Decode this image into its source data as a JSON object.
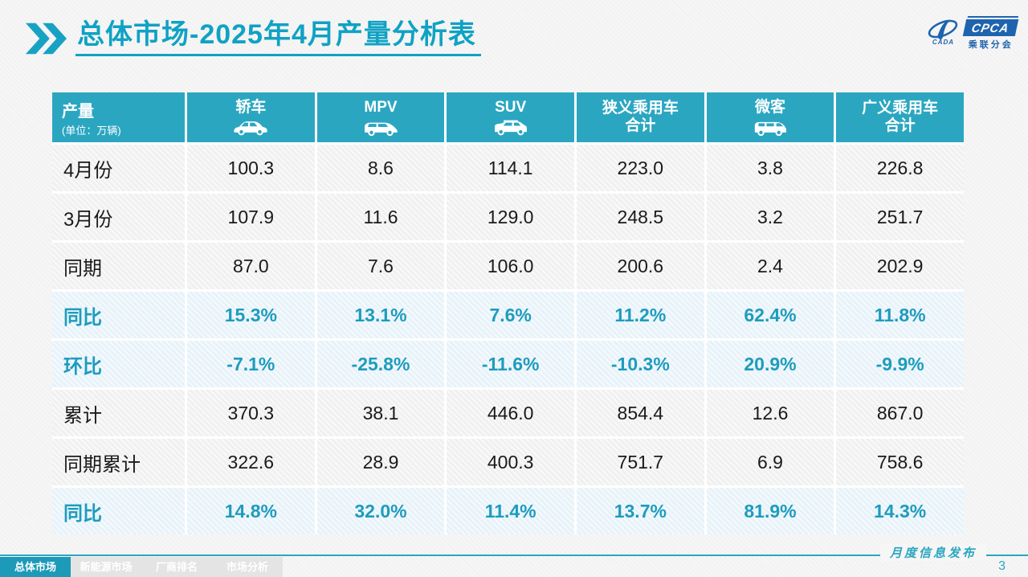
{
  "slide": {
    "title": "总体市场-2025年4月产量分析表",
    "logo": {
      "acronym": "CPCA",
      "org_name": "乘联分会",
      "swoosh_caption": "CADA"
    },
    "watermark_text": "CPCA 乘联分会",
    "footer": {
      "publication_label": "月度信息发布",
      "page_number": "3",
      "tabs": [
        {
          "label": "总体市场",
          "active": true
        },
        {
          "label": "新能源市场",
          "active": false
        },
        {
          "label": "厂商排名",
          "active": false
        },
        {
          "label": "市场分析",
          "active": false
        }
      ]
    }
  },
  "table": {
    "corner": {
      "title": "产量",
      "unit": "(单位：万辆)"
    },
    "columns": [
      {
        "label": "轿车",
        "icon": "sedan-icon"
      },
      {
        "label": "MPV",
        "icon": "mpv-icon"
      },
      {
        "label": "SUV",
        "icon": "suv-icon"
      },
      {
        "label": "狭义乘用车\n合计",
        "icon": null
      },
      {
        "label": "微客",
        "icon": "microvan-icon"
      },
      {
        "label": "广义乘用车\n合计",
        "icon": null
      }
    ],
    "rows": [
      {
        "label": "4月份",
        "highlight": false,
        "values": [
          "100.3",
          "8.6",
          "114.1",
          "223.0",
          "3.8",
          "226.8"
        ]
      },
      {
        "label": "3月份",
        "highlight": false,
        "values": [
          "107.9",
          "11.6",
          "129.0",
          "248.5",
          "3.2",
          "251.7"
        ]
      },
      {
        "label": "同期",
        "highlight": false,
        "values": [
          "87.0",
          "7.6",
          "106.0",
          "200.6",
          "2.4",
          "202.9"
        ]
      },
      {
        "label": "同比",
        "highlight": true,
        "values": [
          "15.3%",
          "13.1%",
          "7.6%",
          "11.2%",
          "62.4%",
          "11.8%"
        ]
      },
      {
        "label": "环比",
        "highlight": true,
        "values": [
          "-7.1%",
          "-25.8%",
          "-11.6%",
          "-10.3%",
          "20.9%",
          "-9.9%"
        ]
      },
      {
        "label": "累计",
        "highlight": false,
        "values": [
          "370.3",
          "38.1",
          "446.0",
          "854.4",
          "12.6",
          "867.0"
        ]
      },
      {
        "label": "同期累计",
        "highlight": false,
        "values": [
          "322.6",
          "28.9",
          "400.3",
          "751.7",
          "6.9",
          "758.6"
        ]
      },
      {
        "label": "同比",
        "highlight": true,
        "values": [
          "14.8%",
          "32.0%",
          "11.4%",
          "13.7%",
          "81.9%",
          "14.3%"
        ]
      }
    ]
  },
  "chart_data": {
    "type": "table",
    "title": "总体市场-2025年4月产量分析表",
    "unit": "万辆",
    "columns": [
      "轿车",
      "MPV",
      "SUV",
      "狭义乘用车合计",
      "微客",
      "广义乘用车合计"
    ],
    "rows": [
      {
        "label": "4月份",
        "values": [
          100.3,
          8.6,
          114.1,
          223.0,
          3.8,
          226.8
        ]
      },
      {
        "label": "3月份",
        "values": [
          107.9,
          11.6,
          129.0,
          248.5,
          3.2,
          251.7
        ]
      },
      {
        "label": "同期",
        "values": [
          87.0,
          7.6,
          106.0,
          200.6,
          2.4,
          202.9
        ]
      },
      {
        "label": "同比",
        "values": [
          "15.3%",
          "13.1%",
          "7.6%",
          "11.2%",
          "62.4%",
          "11.8%"
        ]
      },
      {
        "label": "环比",
        "values": [
          "-7.1%",
          "-25.8%",
          "-11.6%",
          "-10.3%",
          "20.9%",
          "-9.9%"
        ]
      },
      {
        "label": "累计",
        "values": [
          370.3,
          38.1,
          446.0,
          854.4,
          12.6,
          867.0
        ]
      },
      {
        "label": "同期累计",
        "values": [
          322.6,
          28.9,
          400.3,
          751.7,
          6.9,
          758.6
        ]
      },
      {
        "label": "同比",
        "values": [
          "14.8%",
          "32.0%",
          "11.4%",
          "13.7%",
          "81.9%",
          "14.3%"
        ]
      }
    ]
  },
  "colors": {
    "accent_teal": "#2BA6C1",
    "title_teal": "#0FA2C4",
    "highlight_text": "#1D9CBE",
    "highlight_bg": "#E7F2F9",
    "active_tab": "#1C9AB8",
    "inactive_tab_bg": "#E4E4E4",
    "logo_blue": "#1E63AE",
    "footer_teal": "#2BA6C0",
    "body_text": "#1A1A1A",
    "cell_bg": "#F0F0F0"
  }
}
